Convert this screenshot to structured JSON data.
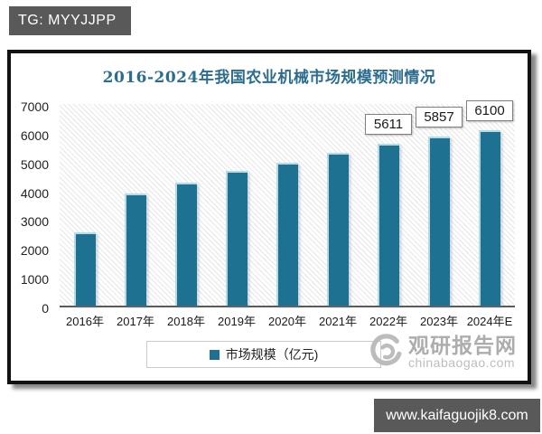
{
  "banner": {
    "text": "TG: MYYJJPP"
  },
  "footer": {
    "url": "www.kaifaguojik8.com"
  },
  "watermark": {
    "site_name": "观研报告网",
    "site_url": "chinabaogao.com"
  },
  "colors": {
    "bar": "#1e7191",
    "title": "#2b6d8f",
    "banner_bg": "#595959"
  },
  "chart_data": {
    "type": "bar",
    "title": "2016-2024年我国农业机械市场规模预测情况",
    "categories": [
      "2016年",
      "2017年",
      "2018年",
      "2019年",
      "2020年",
      "2021年",
      "2022年",
      "2023年",
      "2024年E"
    ],
    "values": [
      2530,
      3880,
      4270,
      4690,
      4970,
      5290,
      5611,
      5857,
      6100
    ],
    "data_labels": [
      "",
      "",
      "",
      "",
      "",
      "",
      "5611",
      "5857",
      "6100"
    ],
    "y_ticks": [
      0,
      1000,
      2000,
      3000,
      4000,
      5000,
      6000,
      7000
    ],
    "ylim": [
      0,
      7000
    ],
    "xlabel": "",
    "ylabel": "",
    "legend": [
      "市场规模（亿元)"
    ],
    "legend_position": "bottom",
    "grid": false,
    "bar_color": "#1e7191"
  }
}
